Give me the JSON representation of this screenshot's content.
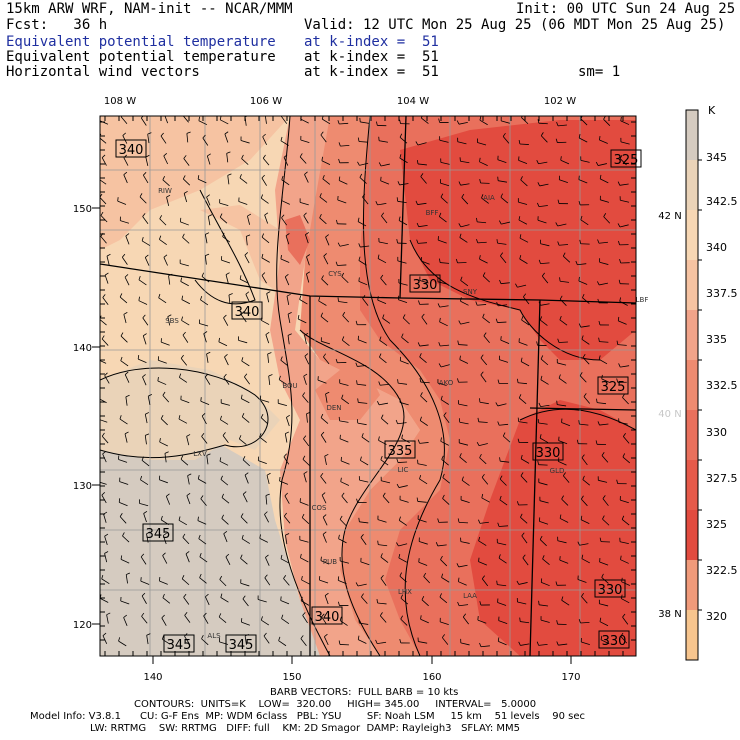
{
  "header": {
    "line1_left": "15km ARW WRF, NAM-init -- NCAR/MMM",
    "line1_right": "Init: 00 UTC Sun 24 Aug 25",
    "fcst": "Fcst:   36 h",
    "valid": "Valid: 12 UTC Mon 25 Aug 25 (06 MDT Mon 25 Aug 25)",
    "fields": [
      {
        "name": "Equivalent potential temperature",
        "level": "at k-index =  51"
      },
      {
        "name": "Equivalent potential temperature",
        "level": "at k-index =  51"
      },
      {
        "name": "Horizontal wind vectors",
        "level": "at k-index =  51"
      }
    ],
    "sm": "sm= 1"
  },
  "chart_data": {
    "type": "heatmap",
    "x_ticks": [
      "140",
      "150",
      "160",
      "170"
    ],
    "y_ticks": [
      "150",
      "140",
      "130",
      "120"
    ],
    "lon_labels": [
      "108 W",
      "106 W",
      "104 W",
      "102 W"
    ],
    "lat_labels": [
      "42 N",
      "40 N",
      "38 N"
    ],
    "colorbar": {
      "unit": "K",
      "levels": [
        "345",
        "342.5",
        "340",
        "337.5",
        "335",
        "332.5",
        "330",
        "327.5",
        "325",
        "322.5",
        "320"
      ],
      "colors": [
        "#d5cbc0",
        "#ead3b8",
        "#f7d7b4",
        "#f6c3a2",
        "#f2a48a",
        "#ee8b70",
        "#e9705c",
        "#e65a4a",
        "#e24b3f",
        "#f09a7a",
        "#f7c58e"
      ]
    },
    "contour_labels": [
      "340",
      "325",
      "330",
      "340",
      "325",
      "335",
      "330",
      "345",
      "340",
      "330",
      "345",
      "345",
      "330"
    ],
    "cities": [
      "RIW",
      "BFF",
      "AIA",
      "CYS",
      "SNY",
      "LBF",
      "SBS",
      "BOU",
      "AKO",
      "DEN",
      "LXV",
      "LIC",
      "GLD",
      "COS",
      "PUB",
      "LHX",
      "LAA",
      "ALS"
    ],
    "contours": {
      "units": "K",
      "low": 320.0,
      "high": 345.0,
      "interval": 5.0
    }
  },
  "footer": {
    "barb": "BARB VECTORS:  FULL BARB = 10 kts",
    "contours": "CONTOURS:  UNITS=K    LOW=  320.00     HIGH= 345.00     INTERVAL=   5.0000",
    "model1": "Model Info: V3.8.1      CU: G-F Ens  MP: WDM 6class   PBL: YSU        SF: Noah LSM     15 km    51 levels    90 sec",
    "model2": "LW: RRTMG    SW: RRTMG   DIFF: full    KM: 2D Smagor  DAMP: Rayleigh3   SFLAY: MM5"
  }
}
